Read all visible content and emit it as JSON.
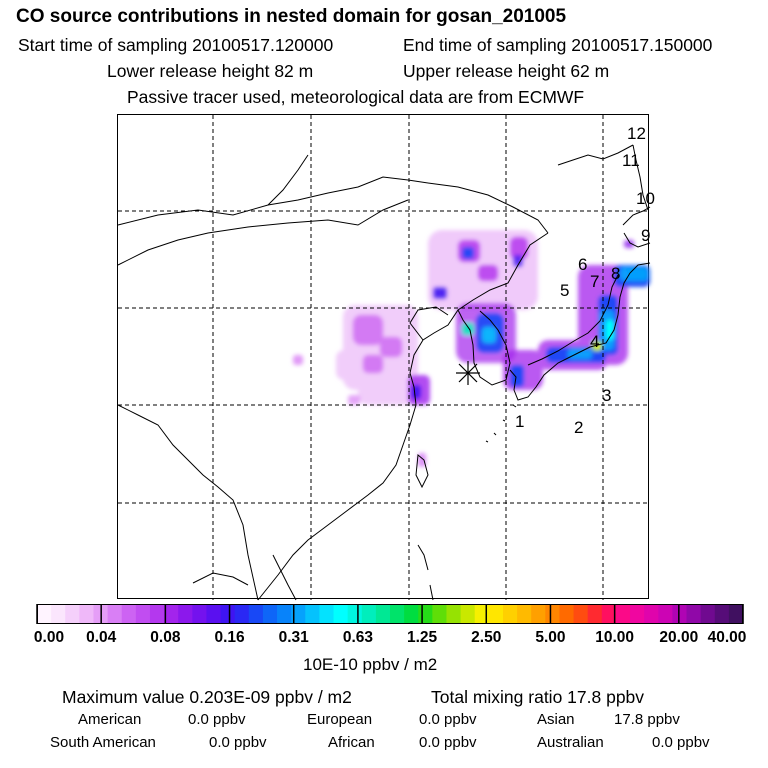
{
  "header": {
    "title": "CO  source contributions in nested domain for gosan_201005",
    "start_time": "Start time of sampling 20100517.120000",
    "end_time": "End time of sampling 20100517.150000",
    "lower_release": "Lower release height   82 m",
    "upper_release": "Upper release height   62 m",
    "tracer_note": "Passive tracer used, meteorological data are from ECMWF"
  },
  "map": {
    "receptor_symbol": "*",
    "numbers": [
      "1",
      "2",
      "3",
      "4",
      "5",
      "6",
      "7",
      "8",
      "9",
      "10",
      "11",
      "12"
    ]
  },
  "colorbar": {
    "tick_labels": [
      "0.00",
      "0.04",
      "0.08",
      "0.16",
      "0.31",
      "0.63",
      "1.25",
      "2.50",
      "5.00",
      "10.00",
      "20.00",
      "40.00"
    ],
    "unit_label": "10E-10 ppbv / m2",
    "colors": [
      "#fff4ff",
      "#fbe6fd",
      "#f5d0fb",
      "#efb8f9",
      "#e59ef7",
      "#d97ff5",
      "#cd63f3",
      "#c14df1",
      "#b438ee",
      "#a324ec",
      "#8c18ec",
      "#7412ee",
      "#5a10f0",
      "#3f14f2",
      "#2a28f4",
      "#1848f6",
      "#0e66f8",
      "#0883fa",
      "#06a2fc",
      "#05c2fd",
      "#04e2fe",
      "#00ffff",
      "#00f6e0",
      "#00eebc",
      "#00e894",
      "#00e36a",
      "#00dd40",
      "#26dc18",
      "#5fde08",
      "#96e202",
      "#c9e800",
      "#f6f000",
      "#ffe600",
      "#ffd000",
      "#ffba00",
      "#ffa000",
      "#ff8600",
      "#ff6a00",
      "#ff4c10",
      "#ff2a30",
      "#ff1060",
      "#fb0a88",
      "#f006a0",
      "#e004ac",
      "#cc04b4",
      "#b004b4",
      "#9008a8",
      "#700a90",
      "#560c78",
      "#401060"
    ]
  },
  "stats": {
    "max_value": "Maximum value  0.203E-09 ppbv / m2",
    "total_mixing": "Total mixing ratio       17.8 ppbv",
    "american": "American",
    "american_val": "0.0 ppbv",
    "european": "European",
    "european_val": "0.0 ppbv",
    "asian": "Asian",
    "asian_val": "17.8 ppbv",
    "south_american": "South American",
    "south_american_val": "0.0 ppbv",
    "african": "African",
    "african_val": "0.0 ppbv",
    "australian": "Australian",
    "australian_val": "0.0 ppbv"
  }
}
